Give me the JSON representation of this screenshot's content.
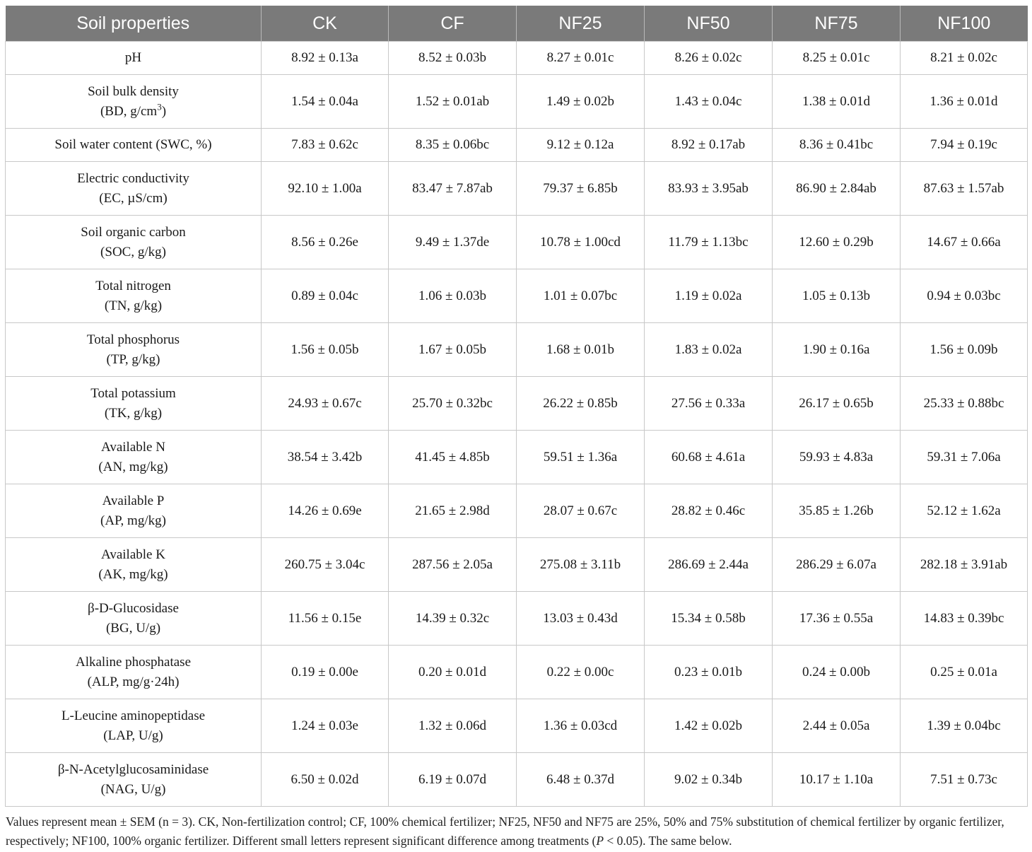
{
  "table": {
    "headers": [
      "Soil properties",
      "CK",
      "CF",
      "NF25",
      "NF50",
      "NF75",
      "NF100"
    ],
    "rows": [
      {
        "prop": [
          "pH"
        ],
        "values": [
          "8.92 ± 0.13a",
          "8.52 ± 0.03b",
          "8.27 ± 0.01c",
          "8.26 ± 0.02c",
          "8.25 ± 0.01c",
          "8.21 ± 0.02c"
        ]
      },
      {
        "prop": [
          "Soil bulk density",
          "(BD, g/cm",
          "3",
          ")"
        ],
        "values": [
          "1.54 ± 0.04a",
          "1.52 ± 0.01ab",
          "1.49 ± 0.02b",
          "1.43 ± 0.04c",
          "1.38 ± 0.01d",
          "1.36 ± 0.01d"
        ]
      },
      {
        "prop": [
          "Soil water content (SWC, %)"
        ],
        "values": [
          "7.83 ± 0.62c",
          "8.35 ± 0.06bc",
          "9.12 ± 0.12a",
          "8.92 ± 0.17ab",
          "8.36 ± 0.41bc",
          "7.94 ± 0.19c"
        ]
      },
      {
        "prop": [
          "Electric conductivity",
          "(EC, µS/cm)"
        ],
        "values": [
          "92.10 ± 1.00a",
          "83.47 ± 7.87ab",
          "79.37 ± 6.85b",
          "83.93 ± 3.95ab",
          "86.90 ± 2.84ab",
          "87.63 ± 1.57ab"
        ]
      },
      {
        "prop": [
          "Soil organic carbon",
          "(SOC, g/kg)"
        ],
        "values": [
          "8.56 ± 0.26e",
          "9.49 ± 1.37de",
          "10.78 ± 1.00cd",
          "11.79 ± 1.13bc",
          "12.60 ± 0.29b",
          "14.67 ± 0.66a"
        ]
      },
      {
        "prop": [
          "Total nitrogen",
          "(TN, g/kg)"
        ],
        "values": [
          "0.89 ± 0.04c",
          "1.06 ± 0.03b",
          "1.01 ± 0.07bc",
          "1.19 ± 0.02a",
          "1.05 ± 0.13b",
          "0.94 ± 0.03bc"
        ]
      },
      {
        "prop": [
          "Total phosphorus",
          "(TP, g/kg)"
        ],
        "values": [
          "1.56 ± 0.05b",
          "1.67 ± 0.05b",
          "1.68 ± 0.01b",
          "1.83 ± 0.02a",
          "1.90 ± 0.16a",
          "1.56 ± 0.09b"
        ]
      },
      {
        "prop": [
          "Total potassium",
          "(TK, g/kg)"
        ],
        "values": [
          "24.93 ± 0.67c",
          "25.70 ± 0.32bc",
          "26.22 ± 0.85b",
          "27.56 ± 0.33a",
          "26.17 ± 0.65b",
          "25.33 ± 0.88bc"
        ]
      },
      {
        "prop": [
          "Available N",
          "(AN, mg/kg)"
        ],
        "values": [
          "38.54 ± 3.42b",
          "41.45 ± 4.85b",
          "59.51 ± 1.36a",
          "60.68 ± 4.61a",
          "59.93 ± 4.83a",
          "59.31 ± 7.06a"
        ]
      },
      {
        "prop": [
          "Available P",
          "(AP, mg/kg)"
        ],
        "values": [
          "14.26 ± 0.69e",
          "21.65 ± 2.98d",
          "28.07 ± 0.67c",
          "28.82 ± 0.46c",
          "35.85 ± 1.26b",
          "52.12 ± 1.62a"
        ]
      },
      {
        "prop": [
          "Available K",
          "(AK, mg/kg)"
        ],
        "values": [
          "260.75 ± 3.04c",
          "287.56 ± 2.05a",
          "275.08 ± 3.11b",
          "286.69 ± 2.44a",
          "286.29 ± 6.07a",
          "282.18 ± 3.91ab"
        ]
      },
      {
        "prop": [
          "β-D-Glucosidase",
          "(BG, U/g)"
        ],
        "values": [
          "11.56 ± 0.15e",
          "14.39 ± 0.32c",
          "13.03 ± 0.43d",
          "15.34 ± 0.58b",
          "17.36 ± 0.55a",
          "14.83 ± 0.39bc"
        ]
      },
      {
        "prop": [
          "Alkaline phosphatase",
          "(ALP, mg/g·24h)"
        ],
        "values": [
          "0.19 ± 0.00e",
          "0.20 ± 0.01d",
          "0.22 ± 0.00c",
          "0.23 ± 0.01b",
          "0.24 ± 0.00b",
          "0.25 ± 0.01a"
        ]
      },
      {
        "prop": [
          "L-Leucine aminopeptidase",
          "(LAP, U/g)"
        ],
        "values": [
          "1.24 ± 0.03e",
          "1.32 ± 0.06d",
          "1.36 ± 0.03cd",
          "1.42 ± 0.02b",
          "2.44 ± 0.05a",
          "1.39 ± 0.04bc"
        ]
      },
      {
        "prop": [
          "β-N-Acetylglucosaminidase",
          "(NAG, U/g)"
        ],
        "values": [
          "6.50 ± 0.02d",
          "6.19 ± 0.07d",
          "6.48 ± 0.37d",
          "9.02 ± 0.34b",
          "10.17 ± 1.10a",
          "7.51 ± 0.73c"
        ]
      }
    ]
  },
  "footnote": {
    "part1": "Values represent mean ± SEM (n = 3). CK, Non-fertilization control; CF, 100% chemical fertilizer; NF25, NF50 and NF75 are 25%, 50% and 75% substitution of chemical fertilizer by organic fertilizer, respectively; NF100, 100% organic fertilizer. Different small letters represent significant difference among treatments (",
    "p_symbol": "P",
    "part2": " < 0.05). The same below."
  }
}
